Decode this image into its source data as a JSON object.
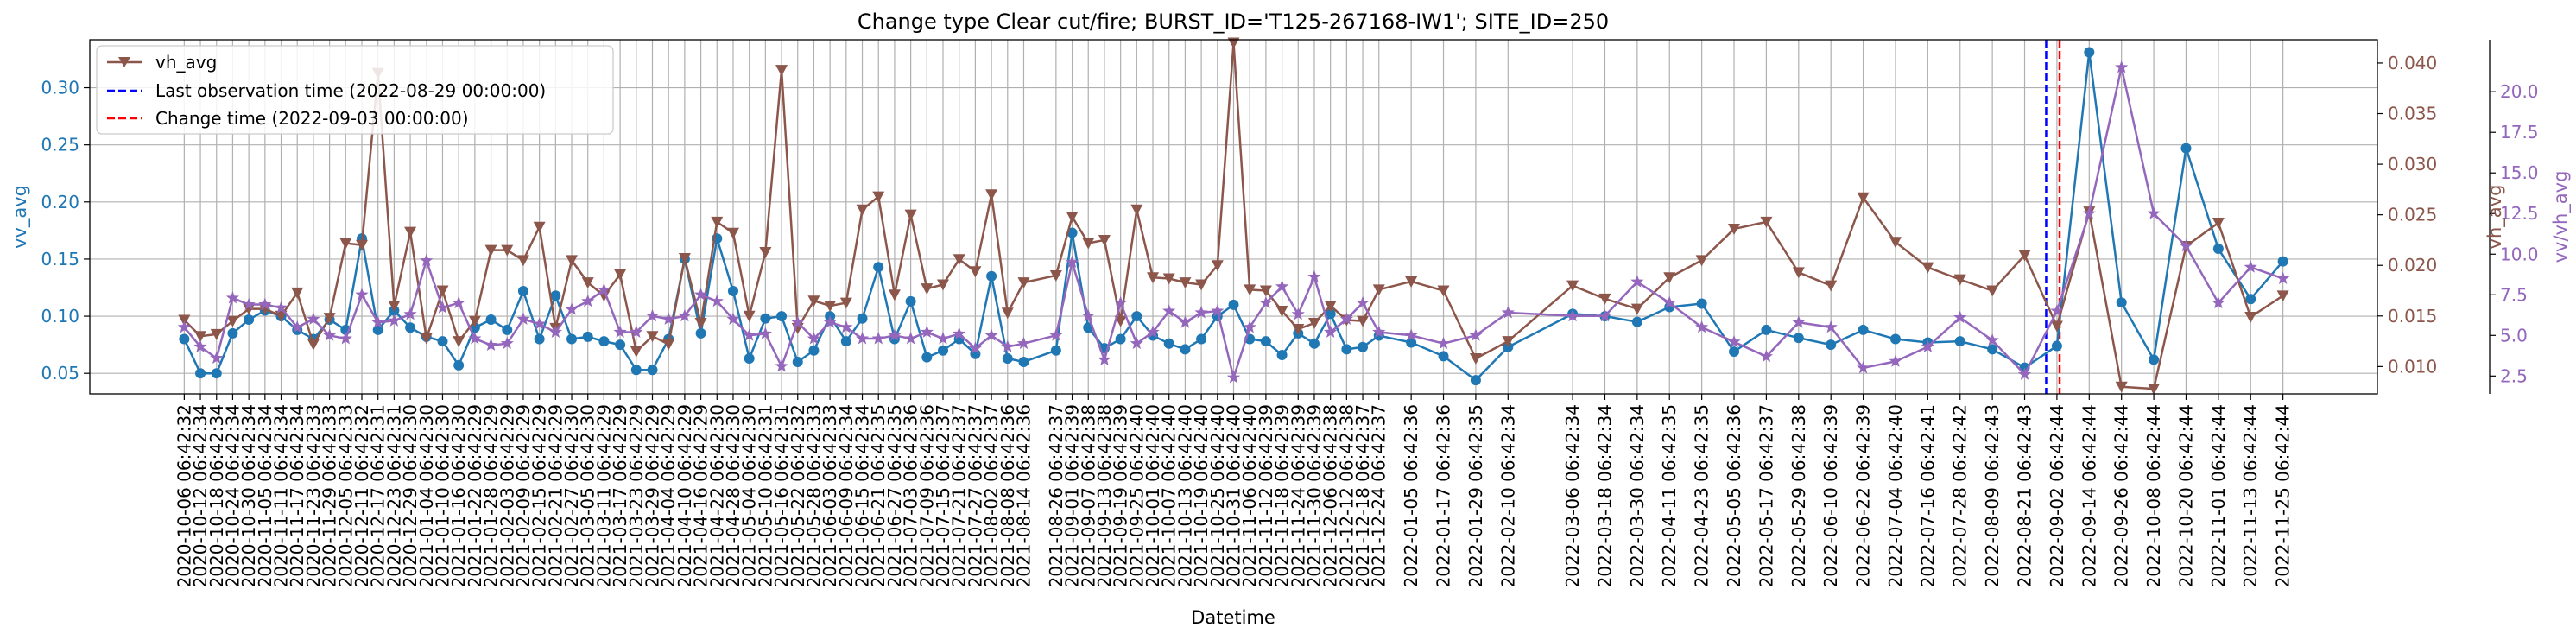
{
  "chart_data": {
    "type": "line",
    "title": "Change type Clear cut/fire; BURST_ID='T125-267168-IW1'; SITE_ID=250",
    "xlabel": "Datetime",
    "ylabel_left": "vv_avg",
    "ylabel_right1": "vh_avg",
    "ylabel_right2": "vv/vh_avg",
    "colors": {
      "vv_avg": "#1f77b4",
      "vh_avg": "#8c564b",
      "vv_vh_avg": "#9467bd",
      "last_obs": "#0000ff",
      "change": "#ff0000"
    },
    "y_left": {
      "lim": [
        0.032,
        0.342
      ],
      "ticks": [
        0.05,
        0.1,
        0.15,
        0.2,
        0.25,
        0.3
      ],
      "tick_labels": [
        "0.05",
        "0.10",
        "0.15",
        "0.20",
        "0.25",
        "0.30"
      ]
    },
    "y_right1": {
      "lim": [
        0.0073,
        0.0423
      ],
      "ticks": [
        0.01,
        0.015,
        0.02,
        0.025,
        0.03,
        0.035,
        0.04
      ],
      "tick_labels": [
        "0.010",
        "0.015",
        "0.020",
        "0.025",
        "0.030",
        "0.035",
        "0.040"
      ]
    },
    "y_right2": {
      "lim": [
        1.4,
        23.2
      ],
      "ticks": [
        2.5,
        5.0,
        7.5,
        10.0,
        12.5,
        15.0,
        17.5,
        20.0
      ],
      "tick_labels": [
        "2.5",
        "5.0",
        "7.5",
        "10.0",
        "12.5",
        "15.0",
        "17.5",
        "20.0"
      ]
    },
    "x": [
      "2020-10-06",
      "2020-10-12",
      "2020-10-18",
      "2020-10-24",
      "2020-10-30",
      "2020-11-05",
      "2020-11-11",
      "2020-11-17",
      "2020-11-23",
      "2020-11-29",
      "2020-12-05",
      "2020-12-11",
      "2020-12-17",
      "2020-12-23",
      "2020-12-29",
      "2021-01-04",
      "2021-01-10",
      "2021-01-16",
      "2021-01-22",
      "2021-01-28",
      "2021-02-03",
      "2021-02-09",
      "2021-02-15",
      "2021-02-21",
      "2021-02-27",
      "2021-03-05",
      "2021-03-11",
      "2021-03-17",
      "2021-03-23",
      "2021-03-29",
      "2021-04-04",
      "2021-04-10",
      "2021-04-16",
      "2021-04-22",
      "2021-04-28",
      "2021-05-04",
      "2021-05-10",
      "2021-05-16",
      "2021-05-22",
      "2021-05-28",
      "2021-06-03",
      "2021-06-09",
      "2021-06-15",
      "2021-06-21",
      "2021-06-27",
      "2021-07-03",
      "2021-07-09",
      "2021-07-15",
      "2021-07-21",
      "2021-07-27",
      "2021-08-02",
      "2021-08-08",
      "2021-08-14",
      "2021-08-26",
      "2021-09-01",
      "2021-09-07",
      "2021-09-13",
      "2021-09-19",
      "2021-09-25",
      "2021-10-01",
      "2021-10-07",
      "2021-10-13",
      "2021-10-19",
      "2021-10-25",
      "2021-10-31",
      "2021-11-06",
      "2021-11-12",
      "2021-11-18",
      "2021-11-24",
      "2021-11-30",
      "2021-12-06",
      "2021-12-12",
      "2021-12-18",
      "2021-12-24",
      "2022-01-05",
      "2022-01-17",
      "2022-01-29",
      "2022-02-10",
      "2022-03-06",
      "2022-03-18",
      "2022-03-30",
      "2022-04-11",
      "2022-04-23",
      "2022-05-05",
      "2022-05-17",
      "2022-05-29",
      "2022-06-10",
      "2022-06-22",
      "2022-07-04",
      "2022-07-16",
      "2022-07-28",
      "2022-08-09",
      "2022-08-21",
      "2022-09-02",
      "2022-09-14",
      "2022-09-26",
      "2022-10-08",
      "2022-10-20",
      "2022-11-01",
      "2022-11-13",
      "2022-11-25"
    ],
    "series": [
      {
        "name": "vv_avg",
        "axis": "left",
        "marker": "circle",
        "values": [
          0.08,
          0.05,
          0.05,
          0.085,
          0.097,
          0.105,
          0.1,
          0.088,
          0.08,
          0.097,
          0.088,
          0.168,
          0.088,
          0.105,
          0.09,
          0.082,
          0.078,
          0.057,
          0.09,
          0.097,
          0.088,
          0.122,
          0.08,
          0.118,
          0.08,
          0.082,
          0.078,
          0.075,
          0.053,
          0.053,
          0.08,
          0.15,
          0.085,
          0.168,
          0.122,
          0.063,
          0.098,
          0.1,
          0.06,
          0.07,
          0.1,
          0.078,
          0.098,
          0.143,
          0.08,
          0.113,
          0.064,
          0.07,
          0.08,
          0.067,
          0.135,
          0.063,
          0.06,
          0.07,
          0.173,
          0.09,
          0.072,
          0.08,
          0.1,
          0.083,
          0.076,
          0.071,
          0.08,
          0.1,
          0.11,
          0.08,
          0.078,
          0.066,
          0.085,
          0.076,
          0.102,
          0.071,
          0.073,
          0.083,
          0.077,
          0.065,
          0.044,
          0.073,
          0.102,
          0.1,
          0.095,
          0.108,
          0.111,
          0.069,
          0.088,
          0.081,
          0.075,
          0.088,
          0.08,
          0.077,
          0.078,
          0.071,
          0.055,
          0.074,
          0.331,
          0.112,
          0.062,
          0.247,
          0.159,
          0.115,
          0.148
        ]
      },
      {
        "name": "vh_avg",
        "axis": "right1",
        "marker": "triangle_down",
        "values": [
          0.0146,
          0.013,
          0.0132,
          0.0145,
          0.0157,
          0.0157,
          0.015,
          0.0173,
          0.0122,
          0.0148,
          0.0222,
          0.022,
          0.039,
          0.016,
          0.0233,
          0.0128,
          0.0175,
          0.0125,
          0.0145,
          0.0215,
          0.0215,
          0.0205,
          0.0238,
          0.0138,
          0.0205,
          0.0183,
          0.017,
          0.0191,
          0.0115,
          0.013,
          0.0122,
          0.0207,
          0.0143,
          0.0243,
          0.0232,
          0.015,
          0.0213,
          0.0393,
          0.0138,
          0.0165,
          0.016,
          0.0163,
          0.0255,
          0.0268,
          0.0171,
          0.025,
          0.0177,
          0.0181,
          0.0206,
          0.0194,
          0.027,
          0.0153,
          0.0183,
          0.019,
          0.0248,
          0.0222,
          0.0225,
          0.0145,
          0.0255,
          0.0188,
          0.0187,
          0.0183,
          0.0181,
          0.02,
          0.042,
          0.0176,
          0.0175,
          0.0155,
          0.0137,
          0.0143,
          0.016,
          0.0146,
          0.0145,
          0.0176,
          0.0184,
          0.0175,
          0.0108,
          0.0125,
          0.018,
          0.0167,
          0.0157,
          0.0188,
          0.0205,
          0.0236,
          0.0243,
          0.0193,
          0.018,
          0.0267,
          0.0223,
          0.0198,
          0.0186,
          0.0175,
          0.021,
          0.014,
          0.0253,
          0.008,
          0.0078,
          0.0219,
          0.0242,
          0.0149,
          0.017
        ]
      },
      {
        "name": "vv/vh_avg",
        "axis": "right2",
        "marker": "star",
        "values": [
          5.5,
          4.3,
          3.6,
          7.3,
          6.9,
          6.9,
          6.7,
          5.5,
          6.0,
          5.0,
          4.8,
          7.5,
          5.8,
          5.9,
          6.3,
          9.6,
          6.7,
          7.0,
          4.8,
          4.4,
          4.5,
          6.0,
          5.7,
          5.2,
          6.6,
          7.1,
          7.8,
          5.2,
          5.2,
          6.2,
          6.0,
          6.2,
          7.5,
          7.1,
          6.0,
          5.0,
          5.1,
          3.1,
          5.8,
          4.8,
          5.8,
          5.5,
          4.8,
          4.8,
          5.0,
          4.8,
          5.2,
          4.8,
          5.1,
          4.2,
          5.0,
          4.3,
          4.5,
          5.0,
          9.5,
          6.2,
          3.5,
          7.0,
          4.5,
          5.2,
          6.5,
          5.8,
          6.4,
          6.5,
          2.4,
          5.5,
          7.0,
          8.0,
          6.3,
          8.6,
          5.2,
          6.0,
          7.0,
          5.2,
          5.0,
          4.5,
          5.0,
          6.4,
          6.2,
          6.2,
          8.3,
          7.0,
          5.5,
          4.6,
          3.7,
          5.8,
          5.5,
          3.0,
          3.4,
          4.3,
          6.1,
          4.7,
          2.6,
          6.5,
          12.5,
          21.5,
          12.5,
          10.5,
          7.0,
          9.2,
          8.5
        ]
      }
    ],
    "vlines": [
      {
        "label": "Last observation time (2022-08-29 00:00:00)",
        "date": "2022-08-29",
        "color": "#0000ff",
        "style": "dashed"
      },
      {
        "label": "Change time (2022-09-03 00:00:00)",
        "date": "2022-09-03",
        "color": "#ff0000",
        "style": "dashed"
      }
    ],
    "x_tick_labels": [
      "2020-10-06 06:42:32",
      "2020-10-12 06:42:34",
      "2020-10-18 06:42:34",
      "2020-10-24 06:42:34",
      "2020-10-30 06:42:34",
      "2020-11-05 06:42:34",
      "2020-11-11 06:42:34",
      "2020-11-17 06:42:34",
      "2020-11-23 06:42:33",
      "2020-11-29 06:42:33",
      "2020-12-05 06:42:33",
      "2020-12-11 06:42:32",
      "2020-12-17 06:42:31",
      "2020-12-23 06:42:31",
      "2020-12-29 06:42:30",
      "2021-01-04 06:42:30",
      "2021-01-10 06:42:30",
      "2021-01-16 06:42:30",
      "2021-01-22 06:42:29",
      "2021-01-28 06:42:29",
      "2021-02-03 06:42:29",
      "2021-02-09 06:42:29",
      "2021-02-15 06:42:29",
      "2021-02-21 06:42:29",
      "2021-02-27 06:42:30",
      "2021-03-05 06:42:30",
      "2021-03-11 06:42:29",
      "2021-03-17 06:42:29",
      "2021-03-23 06:42:29",
      "2021-03-29 06:42:29",
      "2021-04-04 06:42:29",
      "2021-04-10 06:42:29",
      "2021-04-16 06:42:29",
      "2021-04-22 06:42:30",
      "2021-04-28 06:42:30",
      "2021-05-04 06:42:30",
      "2021-05-10 06:42:31",
      "2021-05-16 06:42:31",
      "2021-05-22 06:42:32",
      "2021-05-28 06:42:33",
      "2021-06-03 06:42:33",
      "2021-06-09 06:42:34",
      "2021-06-15 06:42:34",
      "2021-06-21 06:42:35",
      "2021-06-27 06:42:35",
      "2021-07-03 06:42:36",
      "2021-07-09 06:42:36",
      "2021-07-15 06:42:37",
      "2021-07-21 06:42:37",
      "2021-07-27 06:42:37",
      "2021-08-02 06:42:37",
      "2021-08-08 06:42:36",
      "2021-08-14 06:42:36",
      "2021-08-26 06:42:37",
      "2021-09-01 06:42:39",
      "2021-09-07 06:42:38",
      "2021-09-13 06:42:38",
      "2021-09-19 06:42:39",
      "2021-09-25 06:42:40",
      "2021-10-01 06:42:40",
      "2021-10-07 06:42:40",
      "2021-10-13 06:42:40",
      "2021-10-19 06:42:40",
      "2021-10-25 06:42:40",
      "2021-10-31 06:42:40",
      "2021-11-06 06:42:40",
      "2021-11-12 06:42:39",
      "2021-11-18 06:42:39",
      "2021-11-24 06:42:39",
      "2021-11-30 06:42:39",
      "2021-12-06 06:42:38",
      "2021-12-12 06:42:38",
      "2021-12-18 06:42:37",
      "2021-12-24 06:42:37",
      "2022-01-05 06:42:36",
      "2022-01-17 06:42:36",
      "2022-01-29 06:42:35",
      "2022-02-10 06:42:34",
      "2022-03-06 06:42:34",
      "2022-03-18 06:42:34",
      "2022-03-30 06:42:34",
      "2022-04-11 06:42:35",
      "2022-04-23 06:42:35",
      "2022-05-05 06:42:36",
      "2022-05-17 06:42:37",
      "2022-05-29 06:42:38",
      "2022-06-10 06:42:39",
      "2022-06-22 06:42:39",
      "2022-07-04 06:42:40",
      "2022-07-16 06:42:41",
      "2022-07-28 06:42:42",
      "2022-08-09 06:42:43",
      "2022-08-21 06:42:43",
      "2022-09-02 06:42:44",
      "2022-09-14 06:42:44",
      "2022-09-26 06:42:44",
      "2022-10-08 06:42:44",
      "2022-10-20 06:42:44",
      "2022-11-01 06:42:44",
      "2022-11-13 06:42:44",
      "2022-11-25 06:42:44"
    ],
    "legend": {
      "position": "upper-left",
      "entries": [
        "vh_avg",
        "Last observation time (2022-08-29 00:00:00)",
        "Change time (2022-09-03 00:00:00)"
      ]
    },
    "grid": true
  }
}
